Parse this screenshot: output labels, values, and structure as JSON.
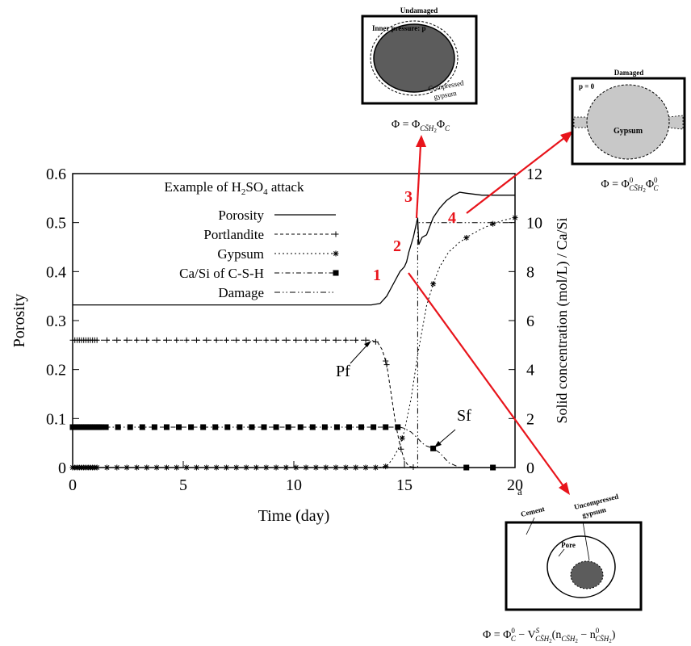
{
  "chart_data": {
    "type": "line",
    "title": "",
    "legend_title_parts": [
      "Example of H",
      "2",
      "SO",
      "4",
      " attack"
    ],
    "legend_position": "top-left",
    "xlabel": "Time (day)",
    "ylabel_left": "Porosity",
    "ylabel_right": "Solid concentration (mol/L) / Ca/Si",
    "xlim": [
      0,
      20
    ],
    "ylim_left": [
      0,
      0.6
    ],
    "ylim_right": [
      0,
      12
    ],
    "x_ticks": [
      "0",
      "5",
      "10",
      "15",
      "20"
    ],
    "y_ticks_left": [
      "0",
      "0.1",
      "0.2",
      "0.3",
      "0.4",
      "0.5",
      "0.6"
    ],
    "y_ticks_right": [
      "0",
      "2",
      "4",
      "6",
      "8",
      "10",
      "12"
    ],
    "series": [
      {
        "name": "Porosity",
        "axis": "left",
        "style": "solid",
        "x": [
          0,
          5,
          10,
          13.5,
          13.9,
          14.2,
          14.5,
          14.8,
          15.0,
          15.1,
          15.2,
          15.4,
          15.6,
          15.65,
          15.8,
          16.0,
          16.3,
          16.6,
          16.9,
          17.2,
          17.5,
          17.8,
          18.5,
          20
        ],
        "y": [
          0.332,
          0.332,
          0.332,
          0.332,
          0.335,
          0.35,
          0.375,
          0.4,
          0.41,
          0.42,
          0.44,
          0.47,
          0.51,
          0.455,
          0.47,
          0.475,
          0.51,
          0.53,
          0.545,
          0.555,
          0.562,
          0.56,
          0.556,
          0.556
        ]
      },
      {
        "name": "Portlandite",
        "axis": "right",
        "style": "dashed",
        "marker": "plus",
        "x": [
          0,
          2,
          4,
          6,
          8,
          10,
          12,
          13.0,
          13.5,
          13.8,
          14.0,
          14.2,
          14.4,
          14.6,
          14.8,
          15.0,
          15.2,
          15.5,
          16,
          20
        ],
        "y": [
          5.2,
          5.2,
          5.2,
          5.2,
          5.2,
          5.2,
          5.2,
          5.2,
          5.2,
          5.1,
          4.8,
          4.2,
          3.0,
          1.8,
          0.9,
          0.3,
          0.05,
          0,
          0,
          0
        ]
      },
      {
        "name": "Gypsum",
        "axis": "right",
        "style": "dotted",
        "marker": "star",
        "x": [
          0,
          5,
          10,
          13.8,
          14.2,
          14.5,
          14.8,
          15.0,
          15.3,
          15.6,
          16.0,
          16.3,
          16.6,
          17.0,
          17.5,
          18.0,
          18.5,
          19.0,
          19.5,
          20
        ],
        "y": [
          0,
          0,
          0,
          0,
          0.05,
          0.4,
          0.9,
          1.5,
          2.8,
          4.6,
          6.6,
          7.5,
          8.2,
          8.8,
          9.2,
          9.5,
          9.75,
          9.95,
          10.1,
          10.2
        ]
      },
      {
        "name": "Ca/Si of C-S-H",
        "axis": "right",
        "style": "dashdot",
        "marker": "square",
        "x": [
          0,
          5,
          10,
          14.0,
          14.8,
          15.0,
          15.3,
          15.6,
          15.8,
          16.0,
          16.3,
          16.6,
          17.0,
          17.5,
          18,
          20
        ],
        "y": [
          1.65,
          1.65,
          1.65,
          1.65,
          1.65,
          1.6,
          1.45,
          1.2,
          1.0,
          0.88,
          0.78,
          0.6,
          0.2,
          0,
          0,
          0
        ]
      },
      {
        "name": "Damage",
        "axis": "left",
        "style": "dashdotdot",
        "x": [
          0,
          15.5,
          15.6,
          15.6,
          20
        ],
        "y": [
          0,
          0,
          0,
          0.5,
          0.5
        ]
      }
    ],
    "annotations": [
      {
        "text": "Pf",
        "x": 13.6,
        "y_right": 5.2
      },
      {
        "text": "Sf",
        "x": 16.3,
        "y_right": 0.75
      }
    ],
    "stage_labels": [
      "1",
      "2",
      "3",
      "4"
    ]
  },
  "diagrams": {
    "undamaged": {
      "title": "Undamaged",
      "inner_label": "Inner pressure: p",
      "shell_label_1": "Compressed",
      "shell_label_2": "gypsum",
      "formula": "Φ = Φ_CSH2 Φ_C"
    },
    "damaged": {
      "title": "Damaged",
      "p_label": "p = 0",
      "inner_label": "Gypsum",
      "formula": "Φ = Φ⁰_CSH2 Φ⁰_C"
    },
    "sulfate": {
      "cement_label": "Cement",
      "pore_label": "Pore",
      "gypsum_label_1": "Uncompressed",
      "gypsum_label_2": "gypsum",
      "formula": "Φ = Φ⁰_C − V^S_CSH2 (n_CSH2 − n⁰_CSH2)"
    },
    "a_label": "a"
  },
  "colors": {
    "arrow": "#e8141b",
    "dark_fill": "#5c5c5c",
    "light_fill": "#c8c8c8",
    "line": "#000000"
  }
}
